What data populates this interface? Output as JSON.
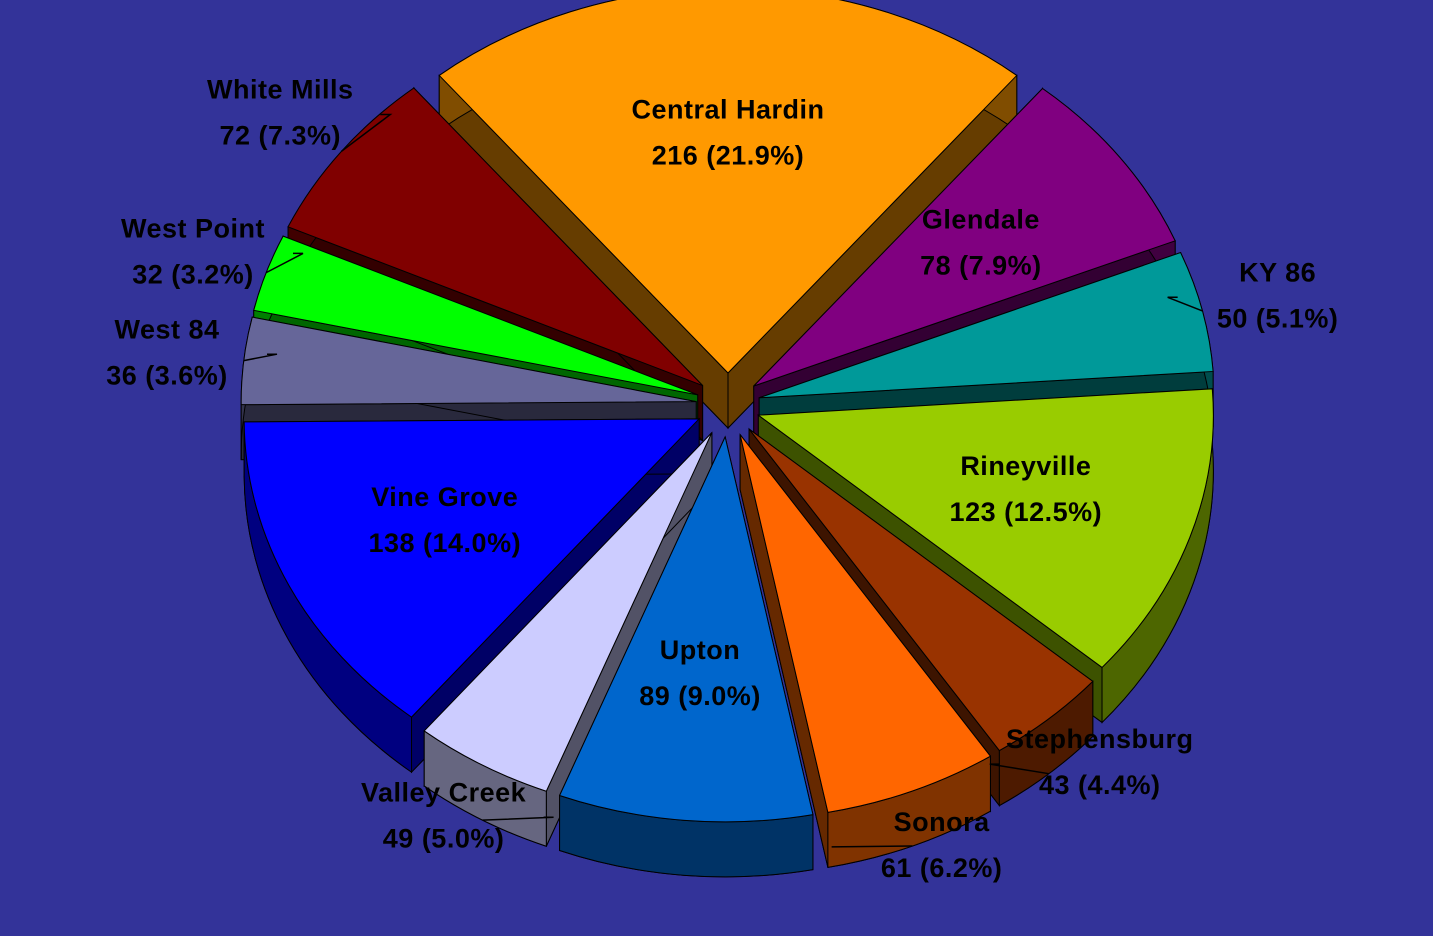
{
  "chart_data": {
    "type": "pie",
    "exploded": true,
    "three_d": true,
    "categories": [
      "Central Hardin",
      "Glendale",
      "KY 86",
      "Rineyville",
      "Stephensburg",
      "Sonora",
      "Upton",
      "Valley Creek",
      "Vine Grove",
      "West 84",
      "West Point",
      "White Mills"
    ],
    "values": [
      216,
      78,
      50,
      123,
      43,
      61,
      89,
      49,
      138,
      36,
      32,
      72
    ],
    "value_labels": [
      "216  (21.9%)",
      "78  (7.9%)",
      "50  (5.1%)",
      "123  (12.5%)",
      "43  (4.4%)",
      "61  (6.2%)",
      "89  (9.0%)",
      "49  (5.0%)",
      "138  (14.0%)",
      "36  (3.6%)",
      "32  (3.2%)",
      "72  (7.3%)"
    ],
    "colors": [
      "#ff9900",
      "#800080",
      "#009999",
      "#99cc00",
      "#993300",
      "#ff6600",
      "#0066cc",
      "#ccccff",
      "#0000ff",
      "#666699",
      "#00ff00",
      "#800000"
    ],
    "background": "#333399"
  }
}
